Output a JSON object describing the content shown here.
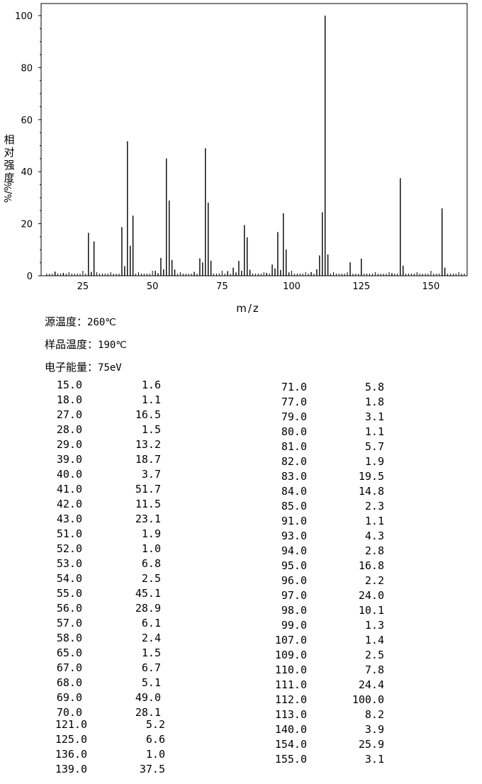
{
  "chart_data": {
    "type": "bar",
    "title": "",
    "xlabel": "m/z",
    "ylabel": "相对强度%/%",
    "xlim": [
      10,
      163
    ],
    "ylim": [
      0,
      100
    ],
    "xticks": [
      25,
      50,
      75,
      100,
      125,
      150
    ],
    "yticks": [
      0,
      20,
      40,
      60,
      80,
      100
    ],
    "x": [
      15,
      18,
      27,
      28,
      29,
      39,
      40,
      41,
      42,
      43,
      51,
      52,
      53,
      54,
      55,
      56,
      57,
      58,
      65,
      67,
      68,
      69,
      70,
      71,
      77,
      79,
      80,
      81,
      82,
      83,
      84,
      85,
      91,
      93,
      94,
      95,
      96,
      97,
      98,
      99,
      107,
      109,
      110,
      111,
      112,
      113,
      121,
      125,
      136,
      139,
      140,
      154,
      155
    ],
    "values": [
      1.6,
      1.1,
      16.5,
      1.5,
      13.2,
      18.7,
      3.7,
      51.7,
      11.5,
      23.1,
      1.9,
      1.0,
      6.8,
      2.5,
      45.1,
      28.9,
      6.1,
      2.4,
      1.5,
      6.7,
      5.1,
      49.0,
      28.1,
      5.8,
      1.8,
      3.1,
      1.1,
      5.7,
      1.9,
      19.5,
      14.8,
      2.3,
      1.1,
      4.3,
      2.8,
      16.8,
      2.2,
      24.0,
      10.1,
      1.3,
      1.4,
      2.5,
      7.8,
      24.4,
      100.0,
      8.2,
      5.2,
      6.6,
      1.0,
      37.5,
      3.9,
      25.9,
      3.1
    ],
    "grid": false
  },
  "ylabel_chars": [
    "相",
    "对",
    "强",
    "度",
    "%/%"
  ],
  "info": {
    "source_temp": {
      "label": "源温度：",
      "value": "260℃"
    },
    "sample_temp": {
      "label": "样品温度：",
      "value": "190℃"
    },
    "electron_energy": {
      "label": "电子能量：",
      "value": "75eV"
    }
  },
  "peak_table": {
    "left": [
      [
        "15.0",
        "1.6"
      ],
      [
        "18.0",
        "1.1"
      ],
      [
        "27.0",
        "16.5"
      ],
      [
        "28.0",
        "1.5"
      ],
      [
        "29.0",
        "13.2"
      ],
      [
        "39.0",
        "18.7"
      ],
      [
        "40.0",
        "3.7"
      ],
      [
        "41.0",
        "51.7"
      ],
      [
        "42.0",
        "11.5"
      ],
      [
        "43.0",
        "23.1"
      ],
      [
        "51.0",
        "1.9"
      ],
      [
        "52.0",
        "1.0"
      ],
      [
        "53.0",
        "6.8"
      ],
      [
        "54.0",
        "2.5"
      ],
      [
        "55.0",
        "45.1"
      ],
      [
        "56.0",
        "28.9"
      ],
      [
        "57.0",
        "6.1"
      ],
      [
        "58.0",
        "2.4"
      ],
      [
        "65.0",
        "1.5"
      ],
      [
        "67.0",
        "6.7"
      ],
      [
        "68.0",
        "5.1"
      ],
      [
        "69.0",
        "49.0"
      ],
      [
        "70.0",
        "28.1"
      ]
    ],
    "left_extra": [
      [
        "121.0",
        "5.2"
      ],
      [
        "125.0",
        "6.6"
      ],
      [
        "136.0",
        "1.0"
      ],
      [
        "139.0",
        "37.5"
      ]
    ],
    "right": [
      [
        "71.0",
        "5.8"
      ],
      [
        "77.0",
        "1.8"
      ],
      [
        "79.0",
        "3.1"
      ],
      [
        "80.0",
        "1.1"
      ],
      [
        "81.0",
        "5.7"
      ],
      [
        "82.0",
        "1.9"
      ],
      [
        "83.0",
        "19.5"
      ],
      [
        "84.0",
        "14.8"
      ],
      [
        "85.0",
        "2.3"
      ],
      [
        "91.0",
        "1.1"
      ],
      [
        "93.0",
        "4.3"
      ],
      [
        "94.0",
        "2.8"
      ],
      [
        "95.0",
        "16.8"
      ],
      [
        "96.0",
        "2.2"
      ],
      [
        "97.0",
        "24.0"
      ],
      [
        "98.0",
        "10.1"
      ],
      [
        "99.0",
        "1.3"
      ],
      [
        "107.0",
        "1.4"
      ],
      [
        "109.0",
        "2.5"
      ],
      [
        "110.0",
        "7.8"
      ],
      [
        "111.0",
        "24.4"
      ],
      [
        "112.0",
        "100.0"
      ],
      [
        "113.0",
        "8.2"
      ],
      [
        "140.0",
        "3.9"
      ],
      [
        "154.0",
        "25.9"
      ],
      [
        "155.0",
        "3.1"
      ]
    ]
  }
}
